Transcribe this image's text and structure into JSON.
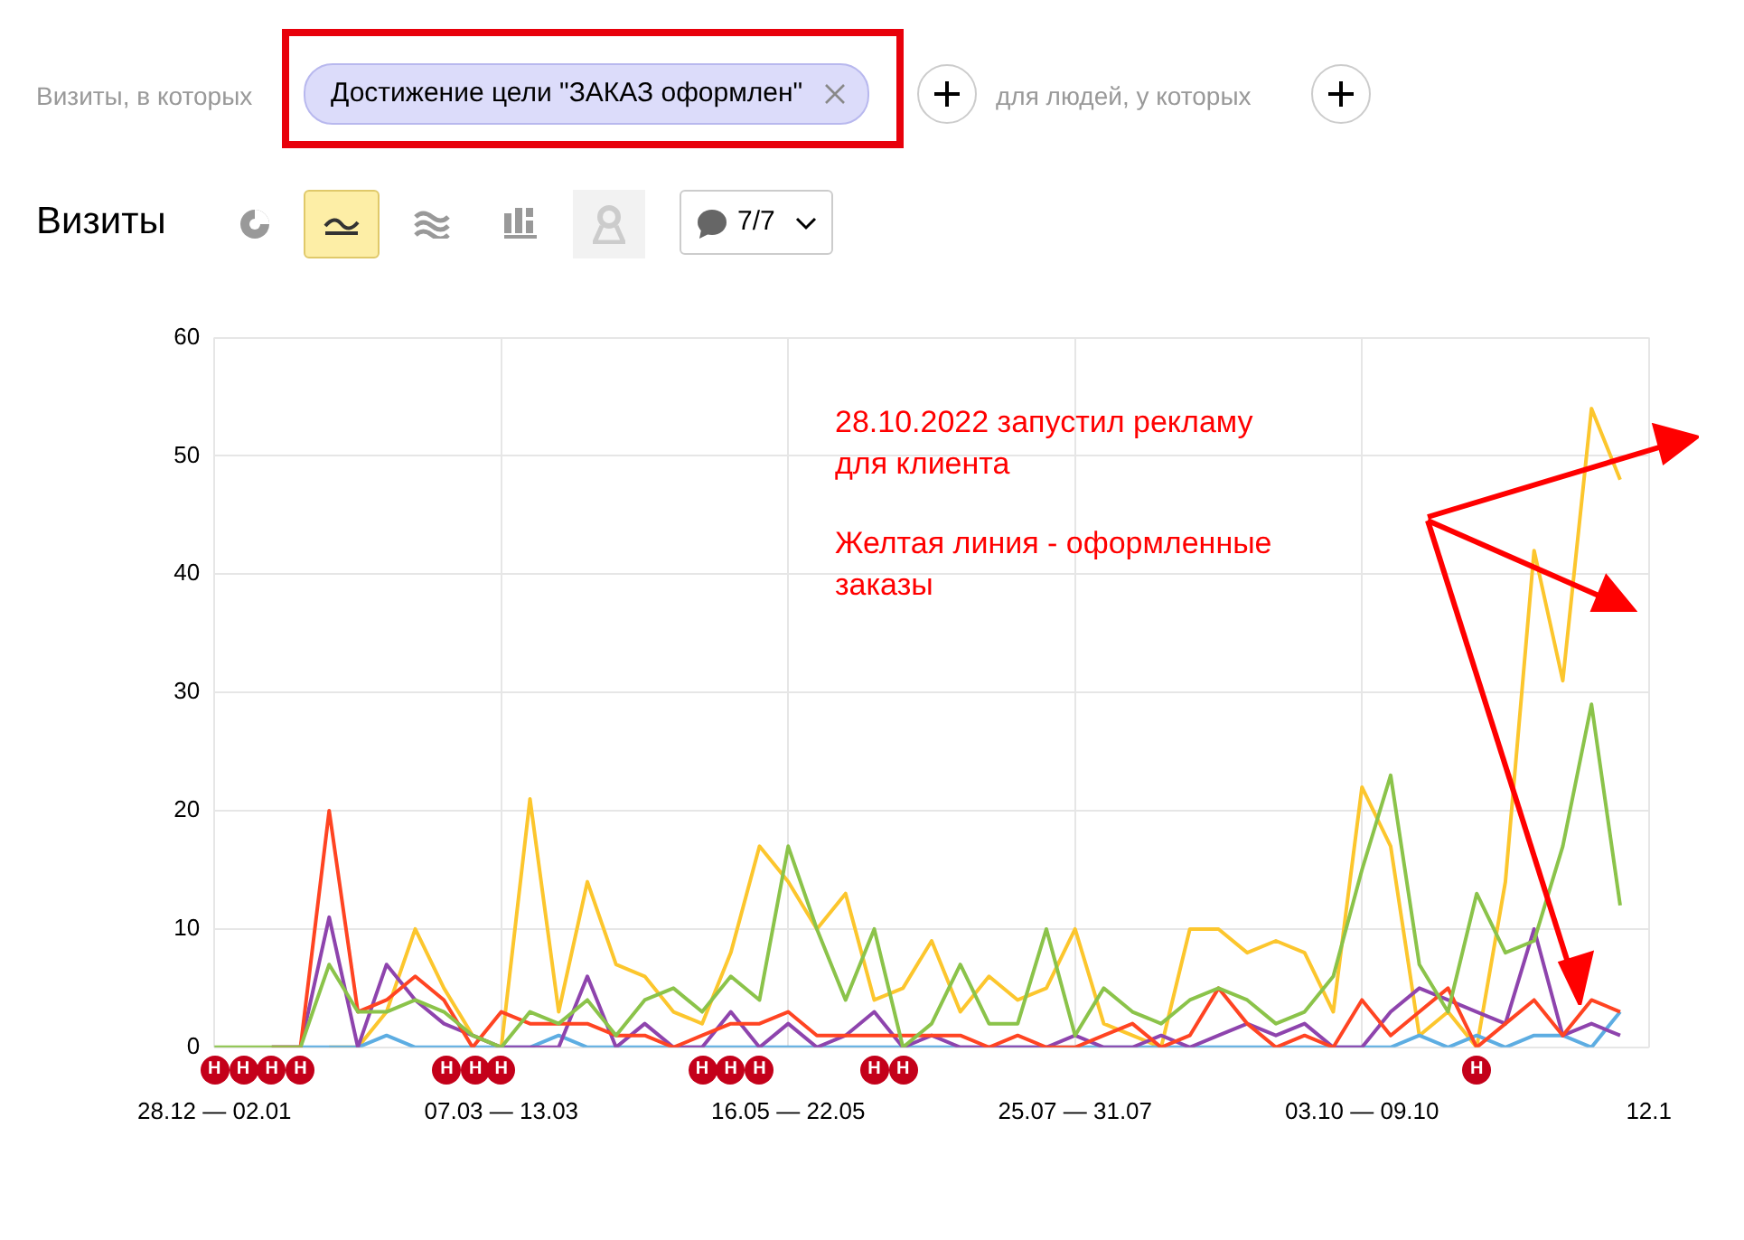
{
  "chart_data": {
    "type": "line",
    "title": "Визиты",
    "categories": [
      "28.12 — 02.01",
      null,
      null,
      null,
      null,
      null,
      null,
      null,
      null,
      null,
      "07.03 — 13.03",
      null,
      null,
      null,
      null,
      null,
      null,
      null,
      null,
      null,
      "16.05 — 22.05",
      null,
      null,
      null,
      null,
      null,
      null,
      null,
      null,
      null,
      "25.07 — 31.07",
      null,
      null,
      null,
      null,
      null,
      null,
      null,
      null,
      null,
      "03.10 — 09.10",
      null,
      null,
      null,
      null,
      null,
      null,
      null,
      null,
      null,
      "12.1"
    ],
    "series": [
      {
        "color": "#8bc34a",
        "values": [
          0,
          0,
          0,
          0,
          7,
          3,
          3,
          4,
          3,
          1,
          0,
          3,
          2,
          4,
          1,
          4,
          5,
          3,
          6,
          4,
          17,
          10,
          4,
          10,
          0,
          2,
          7,
          2,
          2,
          10,
          1,
          5,
          3,
          2,
          4,
          5,
          4,
          2,
          3,
          6,
          15,
          23,
          7,
          3,
          13,
          8,
          9,
          17,
          29,
          12,
          null
        ]
      },
      {
        "color": "#ff4422",
        "values": [
          null,
          null,
          0,
          0,
          20,
          3,
          4,
          6,
          4,
          0,
          3,
          2,
          2,
          2,
          1,
          1,
          0,
          1,
          2,
          2,
          3,
          1,
          1,
          1,
          1,
          1,
          1,
          0,
          1,
          0,
          0,
          1,
          2,
          0,
          1,
          5,
          2,
          0,
          1,
          0,
          4,
          1,
          3,
          5,
          0,
          2,
          4,
          1,
          4,
          3,
          null
        ]
      },
      {
        "color": "#8e44ad",
        "values": [
          null,
          null,
          0,
          0,
          11,
          0,
          7,
          4,
          2,
          1,
          0,
          0,
          0,
          6,
          0,
          2,
          0,
          0,
          3,
          0,
          2,
          0,
          1,
          3,
          0,
          1,
          0,
          0,
          0,
          0,
          1,
          0,
          0,
          1,
          0,
          1,
          2,
          1,
          2,
          0,
          0,
          3,
          5,
          4,
          3,
          2,
          10,
          1,
          2,
          1,
          null
        ]
      },
      {
        "color": "#5dade2",
        "values": [
          null,
          null,
          0,
          0,
          0,
          0,
          1,
          0,
          0,
          0,
          0,
          0,
          1,
          0,
          0,
          0,
          0,
          0,
          0,
          0,
          0,
          0,
          0,
          0,
          0,
          0,
          0,
          0,
          0,
          0,
          0,
          0,
          0,
          0,
          0,
          0,
          0,
          0,
          0,
          0,
          0,
          0,
          1,
          0,
          1,
          0,
          1,
          1,
          0,
          3,
          null
        ]
      },
      {
        "color": "#fcc62d",
        "values": [
          null,
          null,
          null,
          null,
          0,
          0,
          3,
          10,
          5,
          1,
          0,
          21,
          3,
          14,
          7,
          6,
          3,
          2,
          8,
          17,
          14,
          10,
          13,
          4,
          5,
          9,
          3,
          6,
          4,
          5,
          10,
          2,
          1,
          0,
          10,
          10,
          8,
          9,
          8,
          3,
          22,
          17,
          1,
          3,
          0,
          14,
          42,
          31,
          54,
          48,
          null
        ]
      }
    ],
    "ylim": [
      0,
      60
    ],
    "yticks": [
      0,
      10,
      20,
      30,
      40,
      50,
      60
    ],
    "grid": true,
    "legend": false,
    "marker": "none",
    "line_style": "solid",
    "annotations": [
      "Визиты, в которых",
      "Достижение цели \"ЗАКАЗ оформлен\"",
      "для людей, у которых",
      "7/7",
      "28.10.2022 запустил рекламу\nдля клиента",
      "Желтая линия - оформленные\nзаказы",
      "Н"
    ]
  }
}
